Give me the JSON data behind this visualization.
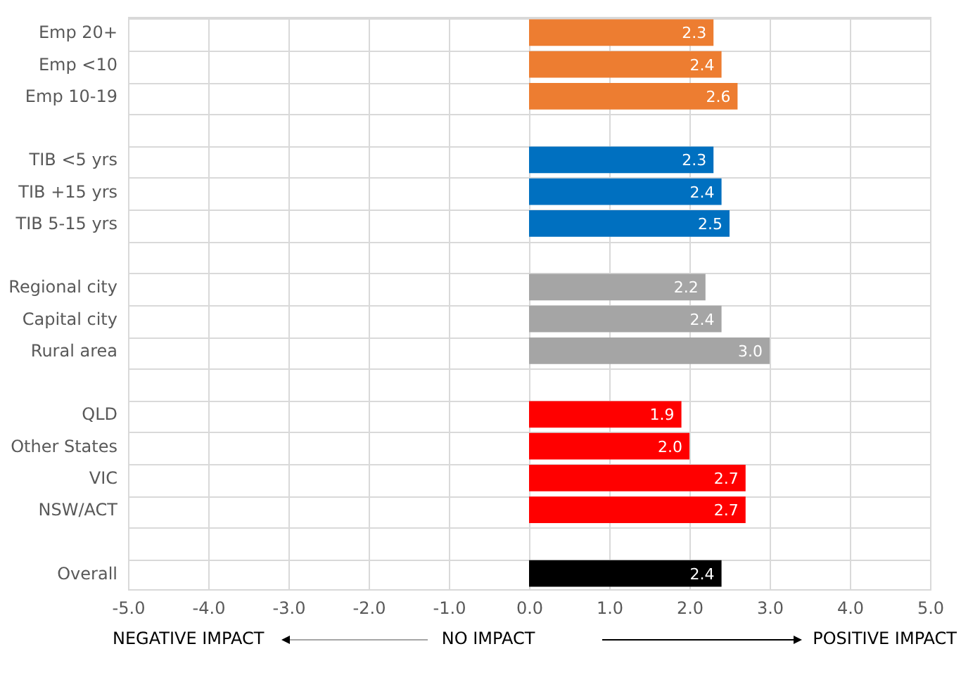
{
  "chart_data": {
    "type": "bar",
    "orientation": "horizontal",
    "categories": [
      "Emp 20+",
      "Emp <10",
      "Emp 10-19",
      null,
      "TIB <5 yrs",
      "TIB +15 yrs",
      "TIB 5-15 yrs",
      null,
      "Regional city",
      "Capital city",
      "Rural area",
      null,
      "QLD",
      "Other States",
      "VIC",
      "NSW/ACT",
      null,
      "Overall"
    ],
    "values": [
      2.3,
      2.4,
      2.6,
      null,
      2.3,
      2.4,
      2.5,
      null,
      2.2,
      2.4,
      3.0,
      null,
      1.9,
      2.0,
      2.7,
      2.7,
      null,
      2.4
    ],
    "value_labels": [
      "2.3",
      "2.4",
      "2.6",
      null,
      "2.3",
      "2.4",
      "2.5",
      null,
      "2.2",
      "2.4",
      "3.0",
      null,
      "1.9",
      "2.0",
      "2.7",
      "2.7",
      null,
      "2.4"
    ],
    "colors": [
      "#ed7d31",
      "#ed7d31",
      "#ed7d31",
      null,
      "#0070c0",
      "#0070c0",
      "#0070c0",
      null,
      "#a5a5a5",
      "#a5a5a5",
      "#a5a5a5",
      null,
      "#ff0000",
      "#ff0000",
      "#ff0000",
      "#ff0000",
      null,
      "#000000"
    ],
    "xlim": [
      -5,
      5
    ],
    "xticks": [
      {
        "value": -5,
        "label": "-5.0"
      },
      {
        "value": -4,
        "label": "-4.0"
      },
      {
        "value": -3,
        "label": "-3.0"
      },
      {
        "value": -2,
        "label": "-2.0"
      },
      {
        "value": -1,
        "label": "-1.0"
      },
      {
        "value": 0,
        "label": "0.0"
      },
      {
        "value": 1,
        "label": "1.0"
      },
      {
        "value": 2,
        "label": "2.0"
      },
      {
        "value": 3,
        "label": "3.0"
      },
      {
        "value": 4,
        "label": "4.0"
      },
      {
        "value": 5,
        "label": "5.0"
      }
    ],
    "grid": true,
    "annotations": [
      "NEGATIVE IMPACT",
      "NO IMPACT",
      "POSITIVE IMPACT"
    ]
  }
}
